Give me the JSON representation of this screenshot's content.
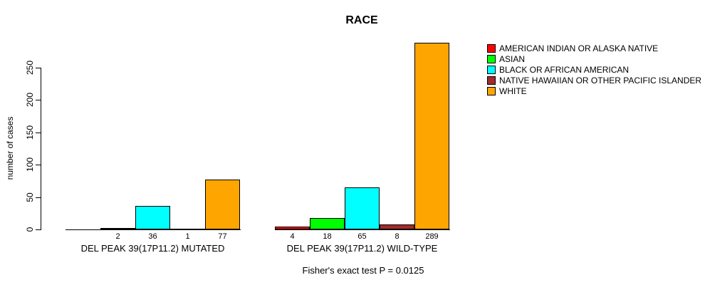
{
  "title": "RACE",
  "chart_data": {
    "type": "bar",
    "title": "RACE",
    "xlabel": "",
    "ylabel": "number of cases",
    "ylim": [
      0,
      290
    ],
    "yticks": [
      0,
      50,
      100,
      150,
      200,
      250
    ],
    "grid": false,
    "legend_position": "right-outside",
    "categories": [
      "DEL PEAK 39(17P11.2) MUTATED",
      "DEL PEAK 39(17P11.2) WILD-TYPE"
    ],
    "series": [
      {
        "name": "AMERICAN INDIAN OR ALASKA NATIVE",
        "color": "#FF0000",
        "values": [
          0,
          4
        ]
      },
      {
        "name": "ASIAN",
        "color": "#00FF00",
        "values": [
          2,
          18
        ]
      },
      {
        "name": "BLACK OR AFRICAN AMERICAN",
        "color": "#00FFFF",
        "values": [
          36,
          65
        ]
      },
      {
        "name": "NATIVE HAWAIIAN OR OTHER PACIFIC ISLANDER",
        "color": "#A52A2A",
        "values": [
          1,
          8
        ]
      },
      {
        "name": "WHITE",
        "color": "#FFA500",
        "values": [
          77,
          289
        ]
      }
    ],
    "bar_labels": [
      [
        "",
        "2",
        "36",
        "1",
        "77"
      ],
      [
        "4",
        "18",
        "65",
        "8",
        "289"
      ]
    ],
    "annotation": "Fisher's exact test P = 0.0125"
  }
}
